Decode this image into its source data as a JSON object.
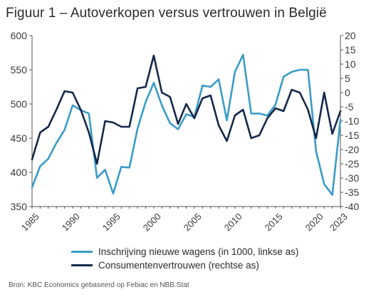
{
  "figure": {
    "title": "Figuur 1 – Autoverkopen versus vertrouwen in België",
    "source": "Bron: KBC Economics gebaseerd op Febiac en NBB.Stat"
  },
  "colors": {
    "inschrijving": "#3a9cc7",
    "consumentenvertrouwen": "#14284b",
    "axis_text": "#3a3a3a",
    "axis_line": "#555555"
  },
  "chart_data": {
    "type": "line",
    "title": "Figuur 1 – Autoverkopen versus vertrouwen in België",
    "x_ticks": [
      "1985",
      "1990",
      "1995",
      "2000",
      "2005",
      "2010",
      "2015",
      "2020",
      "2023"
    ],
    "y_left": {
      "range": [
        350,
        600
      ],
      "ticks": [
        "350",
        "400",
        "450",
        "500",
        "550",
        "600"
      ]
    },
    "y_right": {
      "range": [
        -40,
        20
      ],
      "ticks": [
        "-40",
        "-35",
        "-30",
        "-25",
        "-20",
        "-15",
        "-10",
        "-5",
        "0",
        "5",
        "10",
        "15",
        "20"
      ]
    },
    "grid": false,
    "legend_position": "bottom",
    "series": [
      {
        "name": "Inschrijving nieuwe wagens (in 1000, linkse as)",
        "axis": "left",
        "x": [
          1985,
          1986,
          1987,
          1988,
          1989,
          1990,
          1991,
          1992,
          1993,
          1994,
          1995,
          1996,
          1997,
          1998,
          1999,
          2000,
          2001,
          2002,
          2003,
          2004,
          2005,
          2006,
          2007,
          2008,
          2009,
          2010,
          2011,
          2012,
          2013,
          2014,
          2015,
          2016,
          2017,
          2018,
          2019,
          2020,
          2021,
          2022,
          2023
        ],
        "values": [
          378,
          409,
          420,
          443,
          462,
          498,
          491,
          486,
          392,
          404,
          369,
          408,
          407,
          464,
          503,
          531,
          498,
          472,
          463,
          485,
          481,
          527,
          525,
          536,
          476,
          547,
          572,
          486,
          486,
          483,
          499,
          540,
          547,
          550,
          550,
          431,
          383,
          367,
          477
        ]
      },
      {
        "name": "Consumentenvertrouwen (rechtse as)",
        "axis": "right",
        "x": [
          1985,
          1986,
          1987,
          1988,
          1989,
          1990,
          1991,
          1992,
          1993,
          1994,
          1995,
          1996,
          1997,
          1998,
          1999,
          2000,
          2001,
          2002,
          2003,
          2004,
          2005,
          2006,
          2007,
          2008,
          2009,
          2010,
          2011,
          2012,
          2013,
          2014,
          2015,
          2016,
          2017,
          2018,
          2019,
          2020,
          2021,
          2022,
          2023
        ],
        "values": [
          -23.5,
          -14,
          -12,
          -6,
          0.5,
          0,
          -6,
          -14,
          -25,
          -10,
          -10.5,
          -12,
          -12,
          1.5,
          2,
          13,
          0,
          -1.5,
          -11,
          -4,
          -9,
          -2,
          -1,
          -11.5,
          -17,
          -8,
          -6,
          -16,
          -15,
          -9,
          -5.5,
          -6.5,
          1,
          0,
          -6,
          -16,
          0,
          -14.5,
          -6.5
        ]
      }
    ]
  }
}
